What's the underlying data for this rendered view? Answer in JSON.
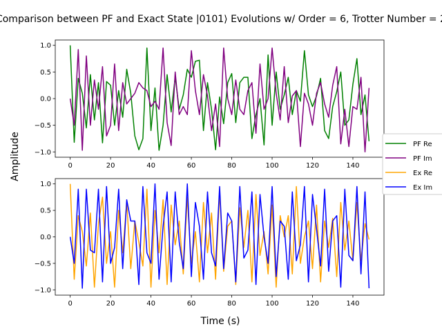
{
  "chart_data": {
    "type": "line",
    "title": "Comparison between PF and Exact State |0101⟩ Evolutions w/ Order = 6, Trotter Number = 2",
    "xlabel": "Time (s)",
    "ylabel": "Amplitude",
    "legend_position": "right",
    "grid": false,
    "subplots": [
      {
        "name": "top",
        "xlim": [
          -7.4,
          155.4
        ],
        "ylim": [
          -1.1,
          1.1
        ],
        "xticks": [
          0,
          20,
          40,
          60,
          80,
          100,
          120,
          140
        ],
        "yticks": [
          -1.0,
          -0.5,
          0.0,
          0.5,
          1.0
        ],
        "series": [
          {
            "name": "PF Re",
            "color": "#008000",
            "x": [
              0,
              2,
              4,
              6,
              8,
              10,
              12,
              14,
              16,
              18,
              20,
              22,
              24,
              26,
              28,
              30,
              32,
              34,
              36,
              38,
              40,
              42,
              44,
              46,
              48,
              50,
              52,
              54,
              56,
              58,
              60,
              62,
              64,
              66,
              68,
              70,
              72,
              74,
              76,
              78,
              80,
              82,
              84,
              86,
              88,
              90,
              92,
              94,
              96,
              98,
              100,
              102,
              104,
              106,
              108,
              110,
              112,
              114,
              116,
              118,
              120,
              122,
              124,
              126,
              128,
              130,
              132,
              134,
              136,
              138,
              140,
              142,
              144,
              146,
              148
            ],
            "y": [
              1.0,
              -0.82,
              0.38,
              0.1,
              -0.55,
              0.45,
              -0.4,
              0.3,
              -0.83,
              0.32,
              0.25,
              -0.5,
              0.15,
              -0.35,
              0.55,
              0.1,
              -0.7,
              -0.96,
              -0.75,
              0.95,
              -0.6,
              0.2,
              -0.97,
              -0.5,
              0.45,
              -0.25,
              0.4,
              -0.2,
              0.07,
              0.55,
              0.4,
              0.7,
              0.72,
              -0.6,
              0.3,
              -0.2,
              -0.96,
              0.03,
              -0.47,
              0.3,
              0.47,
              -0.45,
              0.3,
              0.4,
              0.4,
              -0.75,
              -0.3,
              0.0,
              -0.87,
              0.82,
              -0.5,
              0.5,
              -0.2,
              0.07,
              0.4,
              -0.3,
              0.15,
              -0.05,
              0.9,
              0.07,
              -0.15,
              0.05,
              0.38,
              -0.6,
              -0.75,
              -0.15,
              0.13,
              0.5,
              -0.5,
              -0.4,
              0.27,
              0.75,
              -0.3,
              0.07,
              -0.8
            ]
          },
          {
            "name": "PF Im",
            "color": "#800080",
            "x": [
              0,
              2,
              4,
              6,
              8,
              10,
              12,
              14,
              16,
              18,
              20,
              22,
              24,
              26,
              28,
              30,
              32,
              34,
              36,
              38,
              40,
              42,
              44,
              46,
              48,
              50,
              52,
              54,
              56,
              58,
              60,
              62,
              64,
              66,
              68,
              70,
              72,
              74,
              76,
              78,
              80,
              82,
              84,
              86,
              88,
              90,
              92,
              94,
              96,
              98,
              100,
              102,
              104,
              106,
              108,
              110,
              112,
              114,
              116,
              118,
              120,
              122,
              124,
              126,
              128,
              130,
              132,
              134,
              136,
              138,
              140,
              142,
              144,
              146,
              148
            ],
            "y": [
              0.0,
              -0.5,
              0.92,
              -0.97,
              0.8,
              -0.5,
              0.35,
              -0.2,
              0.6,
              -0.7,
              -0.5,
              0.65,
              -0.6,
              0.3,
              -0.1,
              0.0,
              0.1,
              0.3,
              0.2,
              0.15,
              -0.15,
              -0.05,
              -0.2,
              0.95,
              -0.45,
              -0.88,
              0.5,
              -0.3,
              -0.15,
              -0.3,
              0.9,
              0.15,
              -0.3,
              0.45,
              0.05,
              -0.6,
              -0.1,
              -0.9,
              0.95,
              0.0,
              -0.3,
              0.35,
              -0.2,
              -0.3,
              0.15,
              0.3,
              -0.65,
              0.65,
              -0.2,
              0.0,
              0.95,
              0.1,
              -0.4,
              0.6,
              -0.45,
              0.05,
              0.15,
              -0.9,
              0.1,
              -0.1,
              -0.5,
              0.1,
              0.3,
              -0.1,
              -0.35,
              0.25,
              0.6,
              -0.85,
              -0.2,
              -0.9,
              -0.15,
              -0.2,
              0.4,
              -1.0,
              0.2
            ]
          }
        ]
      },
      {
        "name": "bottom",
        "xlim": [
          -7.4,
          155.4
        ],
        "ylim": [
          -1.1,
          1.1
        ],
        "xticks": [
          0,
          20,
          40,
          60,
          80,
          100,
          120,
          140
        ],
        "yticks": [
          -1.0,
          -0.5,
          0.0,
          0.5,
          1.0
        ],
        "series": [
          {
            "name": "Ex Re",
            "color": "#FFA500",
            "x": [
              0,
              2,
              4,
              6,
              8,
              10,
              12,
              14,
              16,
              18,
              20,
              22,
              24,
              26,
              28,
              30,
              32,
              34,
              36,
              38,
              40,
              42,
              44,
              46,
              48,
              50,
              52,
              54,
              56,
              58,
              60,
              62,
              64,
              66,
              68,
              70,
              72,
              74,
              76,
              78,
              80,
              82,
              84,
              86,
              88,
              90,
              92,
              94,
              96,
              98,
              100,
              102,
              104,
              106,
              108,
              110,
              112,
              114,
              116,
              118,
              120,
              122,
              124,
              126,
              128,
              130,
              132,
              134,
              136,
              138,
              140,
              142,
              144,
              146,
              148
            ],
            "y": [
              1.0,
              -0.8,
              0.4,
              0.1,
              -0.55,
              0.45,
              -0.95,
              0.25,
              0.75,
              -0.5,
              0.1,
              -0.95,
              0.5,
              -0.3,
              0.65,
              -0.6,
              0.3,
              -0.1,
              -0.55,
              0.9,
              -0.95,
              0.5,
              -0.3,
              0.7,
              -0.9,
              0.6,
              -0.15,
              0.3,
              -0.7,
              0.75,
              -0.5,
              0.1,
              -0.85,
              0.65,
              -0.3,
              0.45,
              -0.8,
              0.85,
              -0.65,
              0.2,
              0.3,
              -0.9,
              0.55,
              -0.2,
              0.5,
              -0.85,
              0.8,
              -0.35,
              0.1,
              -0.7,
              0.6,
              -0.95,
              0.4,
              0.0,
              0.4,
              -0.7,
              0.95,
              -0.5,
              0.0,
              0.3,
              -0.6,
              0.6,
              -0.85,
              0.3,
              -0.2,
              0.35,
              -0.75,
              0.65,
              -0.25,
              0.3,
              -0.45,
              0.65,
              -0.45,
              0.25,
              -0.05
            ]
          },
          {
            "name": "Ex Im",
            "color": "#0000FF",
            "x": [
              0,
              2,
              4,
              6,
              8,
              10,
              12,
              14,
              16,
              18,
              20,
              22,
              24,
              26,
              28,
              30,
              32,
              34,
              36,
              38,
              40,
              42,
              44,
              46,
              48,
              50,
              52,
              54,
              56,
              58,
              60,
              62,
              64,
              66,
              68,
              70,
              72,
              74,
              76,
              78,
              80,
              82,
              84,
              86,
              88,
              90,
              92,
              94,
              96,
              98,
              100,
              102,
              104,
              106,
              108,
              110,
              112,
              114,
              116,
              118,
              120,
              122,
              124,
              126,
              128,
              130,
              132,
              134,
              136,
              138,
              140,
              142,
              144,
              146,
              148
            ],
            "y": [
              0.0,
              -0.5,
              0.9,
              -0.97,
              0.9,
              -0.25,
              -0.3,
              0.9,
              -0.85,
              0.95,
              -0.5,
              -0.2,
              0.9,
              -0.6,
              0.7,
              0.3,
              0.3,
              -0.9,
              0.95,
              -0.3,
              -0.5,
              1.0,
              -0.8,
              0.2,
              0.85,
              -0.85,
              0.85,
              -0.1,
              -0.6,
              1.0,
              -0.75,
              0.65,
              0.2,
              -0.8,
              0.85,
              -0.3,
              -0.55,
              0.95,
              -0.6,
              0.45,
              0.3,
              -0.85,
              0.95,
              -0.4,
              -0.25,
              0.85,
              -0.9,
              0.8,
              0.0,
              -0.5,
              0.95,
              -0.75,
              0.3,
              0.2,
              -0.8,
              0.85,
              -0.45,
              -0.15,
              0.95,
              -0.85,
              0.8,
              0.15,
              -0.55,
              0.9,
              -0.65,
              0.3,
              0.4,
              -0.95,
              0.9,
              -0.35,
              -0.45,
              0.95,
              -0.7,
              0.85,
              -0.97
            ]
          }
        ]
      }
    ]
  }
}
